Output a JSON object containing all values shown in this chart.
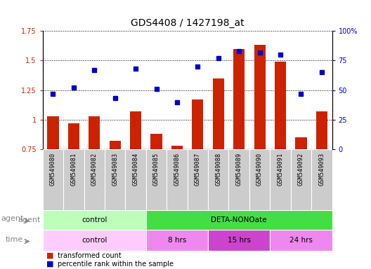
{
  "title": "GDS4408 / 1427198_at",
  "samples": [
    "GSM549080",
    "GSM549081",
    "GSM549082",
    "GSM549083",
    "GSM549084",
    "GSM549085",
    "GSM549086",
    "GSM549087",
    "GSM549088",
    "GSM549089",
    "GSM549090",
    "GSM549091",
    "GSM549092",
    "GSM549093"
  ],
  "bar_values": [
    1.03,
    0.97,
    1.03,
    0.82,
    1.07,
    0.88,
    0.78,
    1.17,
    1.35,
    1.6,
    1.63,
    1.49,
    0.85,
    1.07
  ],
  "dot_values": [
    47,
    52,
    67,
    43,
    68,
    51,
    40,
    70,
    77,
    83,
    82,
    80,
    47,
    65
  ],
  "bar_color": "#cc2200",
  "dot_color": "#0000cc",
  "bar_bottom": 0.75,
  "ylim_left": [
    0.75,
    1.75
  ],
  "ylim_right": [
    0,
    100
  ],
  "yticks_left": [
    0.75,
    1.0,
    1.25,
    1.5,
    1.75
  ],
  "yticks_right": [
    0,
    25,
    50,
    75,
    100
  ],
  "ytick_labels_left": [
    "0.75",
    "1",
    "1.25",
    "1.5",
    "1.75"
  ],
  "ytick_labels_right": [
    "0",
    "25",
    "50",
    "75",
    "100%"
  ],
  "agent_groups": [
    {
      "label": "control",
      "start": 0,
      "end": 5,
      "color": "#bbffbb"
    },
    {
      "label": "DETA-NONOate",
      "start": 5,
      "end": 14,
      "color": "#44dd44"
    }
  ],
  "time_groups": [
    {
      "label": "control",
      "start": 0,
      "end": 5,
      "color": "#ffccff"
    },
    {
      "label": "8 hrs",
      "start": 5,
      "end": 8,
      "color": "#ee88ee"
    },
    {
      "label": "15 hrs",
      "start": 8,
      "end": 11,
      "color": "#cc44cc"
    },
    {
      "label": "24 hrs",
      "start": 11,
      "end": 14,
      "color": "#ee88ee"
    }
  ],
  "legend_bar_label": "transformed count",
  "legend_dot_label": "percentile rank within the sample",
  "bg_color": "#ffffff",
  "xtick_bg_color": "#cccccc",
  "title_fontsize": 10,
  "tick_fontsize": 7,
  "label_fontsize": 8,
  "annot_fontsize": 7.5
}
